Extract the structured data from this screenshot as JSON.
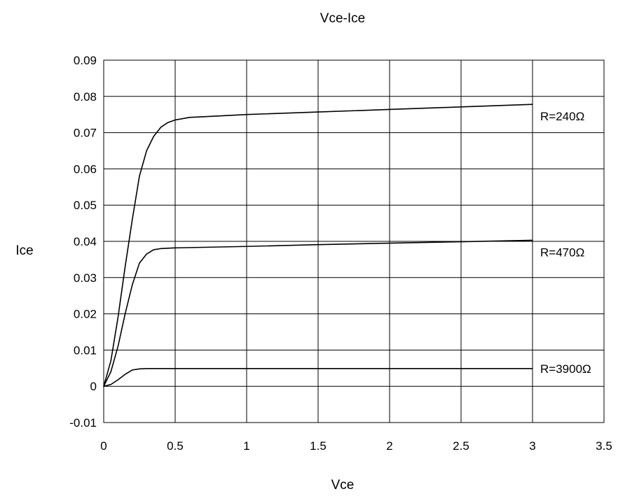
{
  "chart_data": {
    "type": "line",
    "title": "Vce-Ice",
    "xlabel": "Vce",
    "ylabel": "Ice",
    "xlim": [
      0,
      3.5
    ],
    "ylim": [
      -0.01,
      0.09
    ],
    "x_ticks": [
      "0",
      "0.5",
      "1",
      "1.5",
      "2",
      "2.5",
      "3",
      "3.5"
    ],
    "y_ticks": [
      "0.09",
      "0.08",
      "0.07",
      "0.06",
      "0.05",
      "0.04",
      "0.03",
      "0.02",
      "0.01",
      "0",
      "-0.01"
    ],
    "grid": true,
    "legend": "none",
    "line_color": "#000000",
    "series": [
      {
        "name": "R=240Ω",
        "x": [
          0,
          0.05,
          0.1,
          0.15,
          0.2,
          0.25,
          0.3,
          0.35,
          0.4,
          0.45,
          0.5,
          0.6,
          0.8,
          1.0,
          1.5,
          2.0,
          2.5,
          3.0
        ],
        "y": [
          0,
          0.007,
          0.019,
          0.033,
          0.046,
          0.058,
          0.065,
          0.069,
          0.0715,
          0.0728,
          0.0735,
          0.0742,
          0.0746,
          0.075,
          0.0757,
          0.0764,
          0.0771,
          0.0778
        ]
      },
      {
        "name": "R=470Ω",
        "x": [
          0,
          0.05,
          0.1,
          0.15,
          0.2,
          0.25,
          0.3,
          0.35,
          0.4,
          0.5,
          1.0,
          1.5,
          2.0,
          2.5,
          3.0
        ],
        "y": [
          0,
          0.004,
          0.011,
          0.02,
          0.028,
          0.034,
          0.0365,
          0.0377,
          0.038,
          0.0382,
          0.0386,
          0.0391,
          0.0395,
          0.0399,
          0.0403
        ]
      },
      {
        "name": "R=3900Ω",
        "x": [
          0,
          0.05,
          0.1,
          0.15,
          0.2,
          0.25,
          0.3,
          0.5,
          1.0,
          2.0,
          3.0
        ],
        "y": [
          0,
          0.0005,
          0.0018,
          0.0033,
          0.0045,
          0.0048,
          0.0049,
          0.0049,
          0.0049,
          0.0049,
          0.0049
        ]
      }
    ]
  }
}
